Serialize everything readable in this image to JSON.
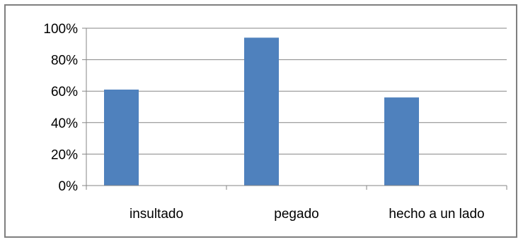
{
  "chart_data": {
    "type": "bar",
    "categories": [
      "insultado",
      "pegado",
      "hecho a un lado"
    ],
    "values": [
      61,
      94,
      56
    ],
    "y_unit": "%",
    "ylim": [
      0,
      100
    ],
    "yticks": [
      0,
      20,
      40,
      60,
      80,
      100
    ],
    "ytick_labels": [
      "0%",
      "20%",
      "40%",
      "60%",
      "80%",
      "100%"
    ],
    "grid": true,
    "legend": "none",
    "bar_color": "#4f81bd",
    "grid_color": "#868686"
  }
}
